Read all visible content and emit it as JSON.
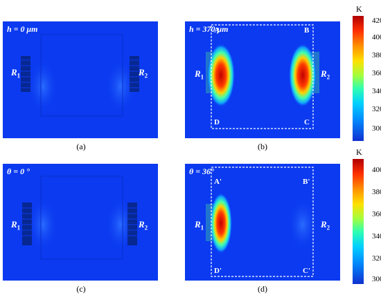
{
  "panels": [
    {
      "id": "a",
      "title": "h = 0 μm",
      "caption": "(a)",
      "r1": "R",
      "r1_sub": "1",
      "r2": "R",
      "r2_sub": "2"
    },
    {
      "id": "b",
      "title": "h = 370 μm",
      "caption": "(b)",
      "r1": "R",
      "r1_sub": "1",
      "r2": "R",
      "r2_sub": "2",
      "corners": {
        "tl": "A",
        "tr": "B",
        "bl": "D",
        "br": "C"
      }
    },
    {
      "id": "c",
      "title": "θ = 0 °",
      "caption": "(c)",
      "r1": "R",
      "r1_sub": "1",
      "r2": "R",
      "r2_sub": "2"
    },
    {
      "id": "d",
      "title": "θ = 36°",
      "caption": "(d)",
      "r1": "R",
      "r1_sub": "1",
      "r2": "R",
      "r2_sub": "2",
      "corners": {
        "tl": "A'",
        "tr": "B'",
        "bl": "D'",
        "br": "C'"
      }
    }
  ],
  "colorbar_top": {
    "unit": "K",
    "ticks": [
      "420",
      "400",
      "380",
      "360",
      "340",
      "320",
      "300"
    ]
  },
  "colorbar_bottom": {
    "unit": "K",
    "ticks": [
      "400",
      "380",
      "360",
      "340",
      "320",
      "300"
    ]
  },
  "colors": {
    "background_field": "#0b3af0",
    "hot": "#d00000"
  }
}
